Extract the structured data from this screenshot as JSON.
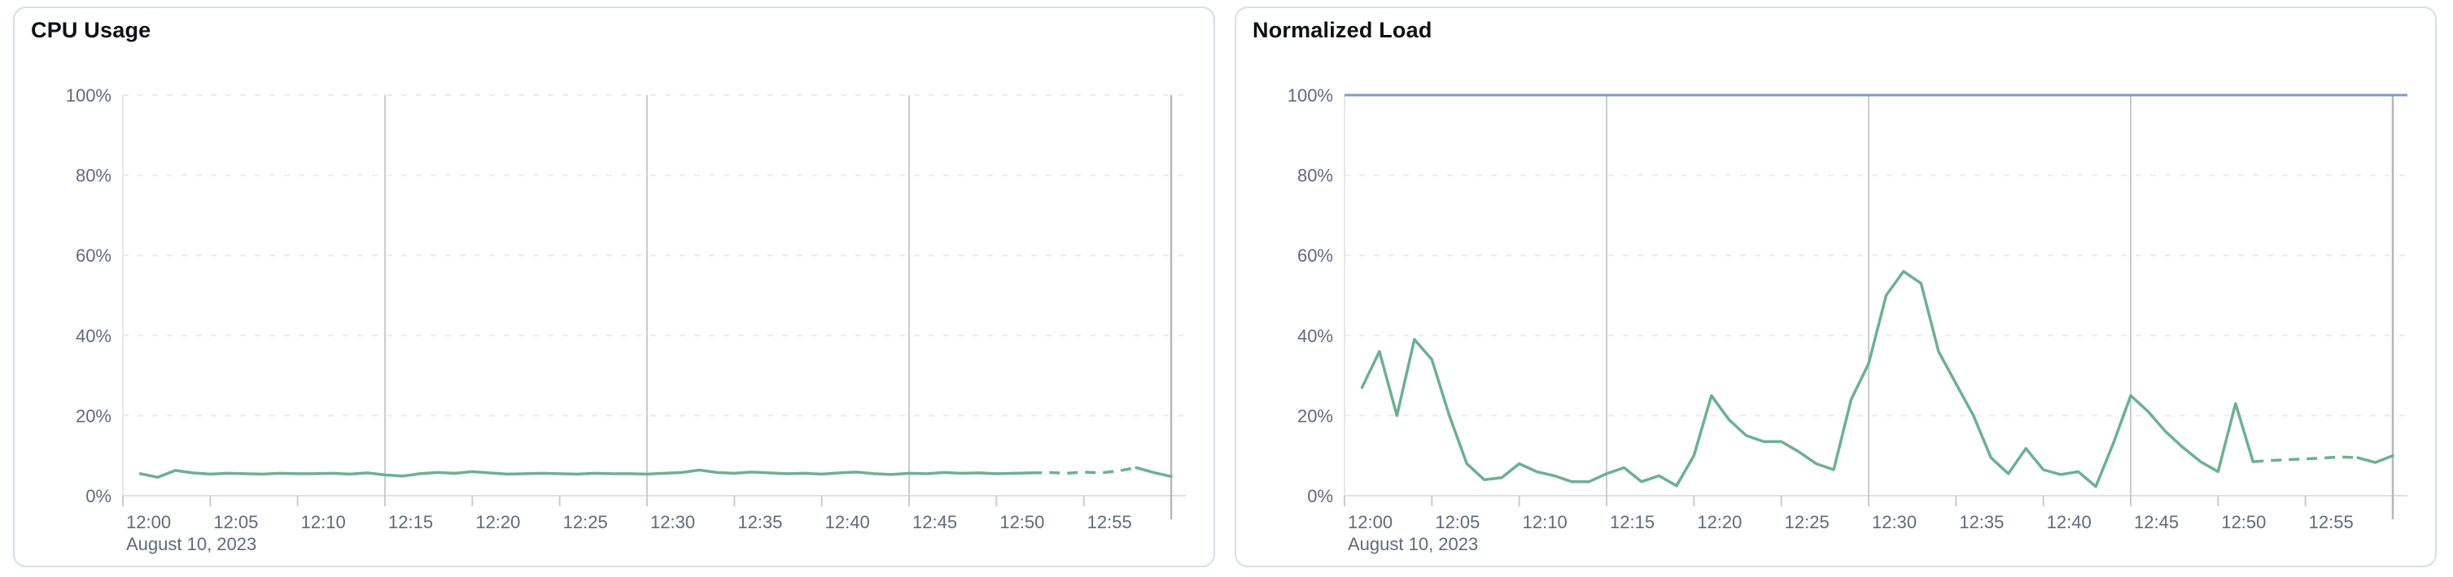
{
  "panels": [
    {
      "title": "CPU Usage"
    },
    {
      "title": "Normalized Load"
    }
  ],
  "chart_data": [
    {
      "type": "line",
      "title": "CPU Usage",
      "xlabel": "",
      "ylabel": "",
      "x_axis_date": "August 10, 2023",
      "x_tick_labels": [
        "12:00",
        "12:05",
        "12:10",
        "12:15",
        "12:20",
        "12:25",
        "12:30",
        "12:35",
        "12:40",
        "12:45",
        "12:50",
        "12:55"
      ],
      "y_tick_labels": [
        "0%",
        "20%",
        "40%",
        "60%",
        "80%",
        "100%"
      ],
      "ylim": [
        0,
        100
      ],
      "x_domain_minutes": [
        0,
        60
      ],
      "major_grid_minutes": [
        15,
        30,
        45
      ],
      "grid": "dashed-horizontal",
      "legend": "none",
      "threshold": null,
      "series": [
        {
          "name": "cpu-usage",
          "color": "#6ab192",
          "start_minute": 1,
          "step_minutes": 1,
          "dashed_from_minute": 52,
          "dashed_to_minute": 58,
          "values": [
            5.5,
            4.6,
            6.3,
            5.7,
            5.4,
            5.6,
            5.5,
            5.4,
            5.6,
            5.5,
            5.5,
            5.6,
            5.4,
            5.7,
            5.2,
            4.9,
            5.5,
            5.8,
            5.6,
            6.0,
            5.7,
            5.4,
            5.5,
            5.6,
            5.5,
            5.4,
            5.6,
            5.5,
            5.5,
            5.4,
            5.6,
            5.8,
            6.4,
            5.8,
            5.6,
            5.9,
            5.7,
            5.5,
            5.6,
            5.4,
            5.7,
            5.9,
            5.5,
            5.3,
            5.6,
            5.5,
            5.8,
            5.6,
            5.7,
            5.5,
            5.6,
            5.7,
            5.8,
            5.6,
            5.9,
            5.7,
            6.2,
            7.0,
            5.8,
            4.8
          ]
        }
      ]
    },
    {
      "type": "line",
      "title": "Normalized Load",
      "xlabel": "",
      "ylabel": "",
      "x_axis_date": "August 10, 2023",
      "x_tick_labels": [
        "12:00",
        "12:05",
        "12:10",
        "12:15",
        "12:20",
        "12:25",
        "12:30",
        "12:35",
        "12:40",
        "12:45",
        "12:50",
        "12:55"
      ],
      "y_tick_labels": [
        "0%",
        "20%",
        "40%",
        "60%",
        "80%",
        "100%"
      ],
      "ylim": [
        0,
        100
      ],
      "x_domain_minutes": [
        0,
        60
      ],
      "major_grid_minutes": [
        15,
        30,
        45
      ],
      "grid": "dashed-horizontal",
      "legend": "none",
      "threshold": {
        "value": 100,
        "color": "#7f9cc7"
      },
      "series": [
        {
          "name": "normalized-load",
          "color": "#6ab192",
          "start_minute": 1,
          "step_minutes": 1,
          "dashed_from_minute": 52,
          "dashed_to_minute": 58,
          "values": [
            27,
            36,
            20,
            39,
            34,
            20,
            8,
            4,
            4.5,
            8,
            6,
            5,
            3.5,
            3.5,
            5.5,
            7,
            3.5,
            5,
            2.5,
            10,
            25,
            19,
            15,
            13.5,
            13.5,
            11,
            8,
            6.5,
            24,
            33,
            50,
            56,
            53,
            36,
            28,
            20,
            9.5,
            5.5,
            11.8,
            6.5,
            5.3,
            6,
            2.3,
            13,
            25,
            21,
            16,
            12,
            8.5,
            6,
            23,
            8.5,
            8.8,
            9,
            9.2,
            9.4,
            9.7,
            9.5,
            8.3,
            10
          ]
        }
      ]
    }
  ],
  "style_colors": {
    "series_green": "#6ab192",
    "threshold_blue": "#7f9cc7",
    "grid_dashed": "#e9ebf2",
    "grid_major_vertical": "#c9ccd1",
    "axis_baseline": "#dde1e6",
    "end_marker": "#b4b7bc",
    "axis_text": "#5f6b7a",
    "title_text": "#0d1117",
    "card_border": "#d8dee8"
  }
}
